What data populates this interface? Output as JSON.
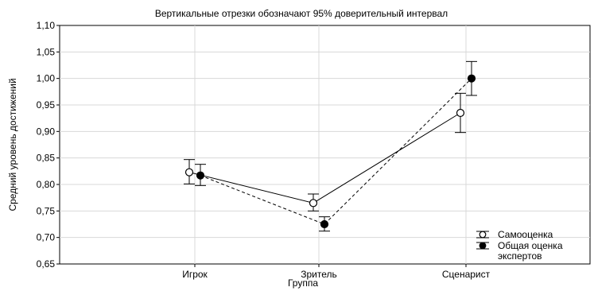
{
  "chart_data": {
    "type": "line",
    "title": "Вертикальные отрезки обозначают 95% доверительный интервал",
    "xlabel": "Группа",
    "ylabel": "Средний уровень достижений",
    "categories": [
      "Игрок",
      "Зритель",
      "Сценарист"
    ],
    "ylim": [
      0.65,
      1.1
    ],
    "yticks": [
      "0,65",
      "0,70",
      "0,75",
      "0,80",
      "0,85",
      "0,90",
      "0,95",
      "1,00",
      "1,05",
      "1,10"
    ],
    "grid": true,
    "legend_position": "bottom-right",
    "series": [
      {
        "name": "Самооценка",
        "marker": "open-circle",
        "line": "solid",
        "values": [
          0.823,
          0.765,
          0.935
        ],
        "ci_low": [
          0.801,
          0.75,
          0.898
        ],
        "ci_high": [
          0.847,
          0.782,
          0.972
        ]
      },
      {
        "name": "Общая оценка экспертов",
        "legend_lines": [
          "Общая оценка",
          "экспертов"
        ],
        "marker": "filled-circle",
        "line": "dashed",
        "values": [
          0.817,
          0.725,
          1.0
        ],
        "ci_low": [
          0.798,
          0.712,
          0.968
        ],
        "ci_high": [
          0.838,
          0.739,
          1.032
        ]
      }
    ]
  }
}
